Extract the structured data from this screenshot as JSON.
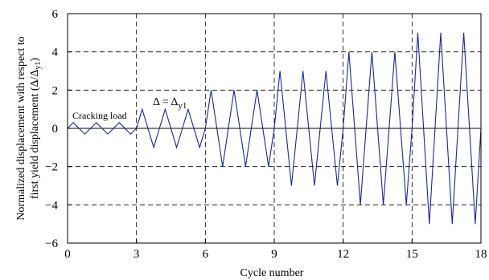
{
  "chart_data": {
    "type": "line",
    "xlabel": "Cycle number",
    "ylabel_line1": "Normalized displacement with respect to",
    "ylabel_line2": "first yield displacement (Δ/Δ",
    "ylabel_line2_sub": "y1",
    "ylabel_line2_end": ")",
    "xlim": [
      0,
      18
    ],
    "ylim": [
      -6,
      6
    ],
    "x_ticks": [
      0,
      3,
      6,
      9,
      12,
      15,
      18
    ],
    "y_ticks": [
      -6,
      -4,
      -2,
      0,
      2,
      4,
      6
    ],
    "x_tick_labels": [
      "0",
      "3",
      "6",
      "9",
      "12",
      "15",
      "18"
    ],
    "y_tick_labels": [
      "−6",
      "−4",
      "−2",
      "0",
      "2",
      "4",
      "6"
    ],
    "grid": {
      "vertical_dashed_x": [
        3,
        6,
        9,
        12,
        15
      ],
      "horizontal_dashed_y": [
        -4,
        -2,
        2,
        4
      ],
      "zero_line_solid": true
    },
    "annotations": {
      "cracking_load": "Cracking load",
      "yield_delta": "Δ = Δ",
      "yield_delta_sub": "y1"
    },
    "series": [
      {
        "color": "#1a2a8c",
        "cycles": [
          {
            "start": 0,
            "amplitude": 0.3
          },
          {
            "start": 1,
            "amplitude": 0.3
          },
          {
            "start": 2,
            "amplitude": 0.3
          },
          {
            "start": 3,
            "amplitude": 1
          },
          {
            "start": 4,
            "amplitude": 1
          },
          {
            "start": 5,
            "amplitude": 1
          },
          {
            "start": 6,
            "amplitude": 2
          },
          {
            "start": 7,
            "amplitude": 2
          },
          {
            "start": 8,
            "amplitude": 2
          },
          {
            "start": 9,
            "amplitude": 3
          },
          {
            "start": 10,
            "amplitude": 3
          },
          {
            "start": 11,
            "amplitude": 3
          },
          {
            "start": 12,
            "amplitude": 4
          },
          {
            "start": 13,
            "amplitude": 4
          },
          {
            "start": 14,
            "amplitude": 4
          },
          {
            "start": 15,
            "amplitude": 5
          },
          {
            "start": 16,
            "amplitude": 5
          },
          {
            "start": 17,
            "amplitude": 5
          }
        ]
      }
    ]
  }
}
